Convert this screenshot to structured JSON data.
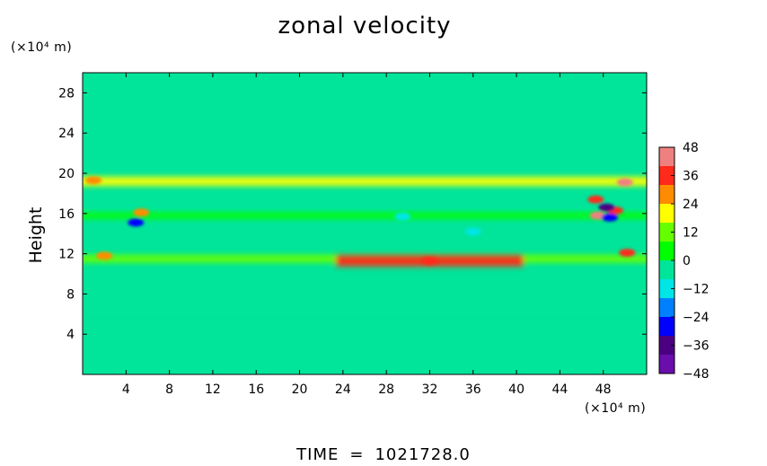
{
  "chart_data": {
    "type": "heatmap",
    "title": "zonal velocity",
    "xlabel": "",
    "ylabel": "Height",
    "x_unit": "(×10⁴ m)",
    "y_unit": "(×10⁴ m)",
    "xlim": [
      0,
      52
    ],
    "ylim": [
      0,
      30
    ],
    "x_ticks": [
      4,
      8,
      12,
      16,
      20,
      24,
      28,
      32,
      36,
      40,
      44,
      48
    ],
    "y_ticks": [
      4,
      8,
      12,
      16,
      20,
      24,
      28
    ],
    "colorbar": {
      "ticks": [
        48,
        36,
        24,
        12,
        0,
        -12,
        -24,
        -36,
        -48
      ],
      "tick_labels": [
        "48",
        "36",
        "24",
        "12",
        "0",
        "−12",
        "−24",
        "−36",
        "−48"
      ],
      "range": [
        -48,
        48
      ],
      "colors_top_to_bottom": [
        "#f08080",
        "#ff2a1a",
        "#ff8c00",
        "#ffff00",
        "#66ff00",
        "#00ff00",
        "#00e59a",
        "#00e5e5",
        "#0080ff",
        "#0000ff",
        "#4b0082",
        "#6a0dad"
      ]
    },
    "background_value": 0,
    "bands": [
      {
        "y": 19.2,
        "x_range": [
          0,
          52
        ],
        "value": 22
      },
      {
        "y": 11.5,
        "x_range": [
          0,
          52
        ],
        "value": 14
      },
      {
        "y": 11.3,
        "x_range": [
          24,
          40
        ],
        "value": 34
      },
      {
        "y": 15.8,
        "x_range": [
          0,
          52
        ],
        "value": 6
      },
      {
        "y": 17.2,
        "x_range": [
          0,
          52
        ],
        "value": -5
      },
      {
        "y": 5.0,
        "x_range": [
          0,
          52
        ],
        "value": -4
      }
    ],
    "features": [
      {
        "x": 50.0,
        "y": 19.1,
        "value": 44
      },
      {
        "x": 50.2,
        "y": 12.1,
        "value": 36
      },
      {
        "x": 47.3,
        "y": 17.4,
        "value": 34
      },
      {
        "x": 47.5,
        "y": 15.8,
        "value": 42
      },
      {
        "x": 49.1,
        "y": 16.3,
        "value": 34
      },
      {
        "x": 48.3,
        "y": 16.6,
        "value": -36
      },
      {
        "x": 48.6,
        "y": 15.6,
        "value": -26
      },
      {
        "x": 5.4,
        "y": 16.1,
        "value": 26
      },
      {
        "x": 4.9,
        "y": 15.1,
        "value": -24
      },
      {
        "x": 32.0,
        "y": 11.3,
        "value": 38
      },
      {
        "x": 2.0,
        "y": 11.8,
        "value": 30
      },
      {
        "x": 1.0,
        "y": 19.3,
        "value": 28
      },
      {
        "x": 29.5,
        "y": 15.7,
        "value": -14
      },
      {
        "x": 36.0,
        "y": 14.2,
        "value": -12
      }
    ]
  },
  "labels": {
    "title": "zonal velocity",
    "y_unit": "(×10⁴ m)",
    "x_unit": "(×10⁴ m)",
    "y_label": "Height",
    "time_label": "TIME",
    "time_eq": "=",
    "time_value": "1021728.0"
  }
}
